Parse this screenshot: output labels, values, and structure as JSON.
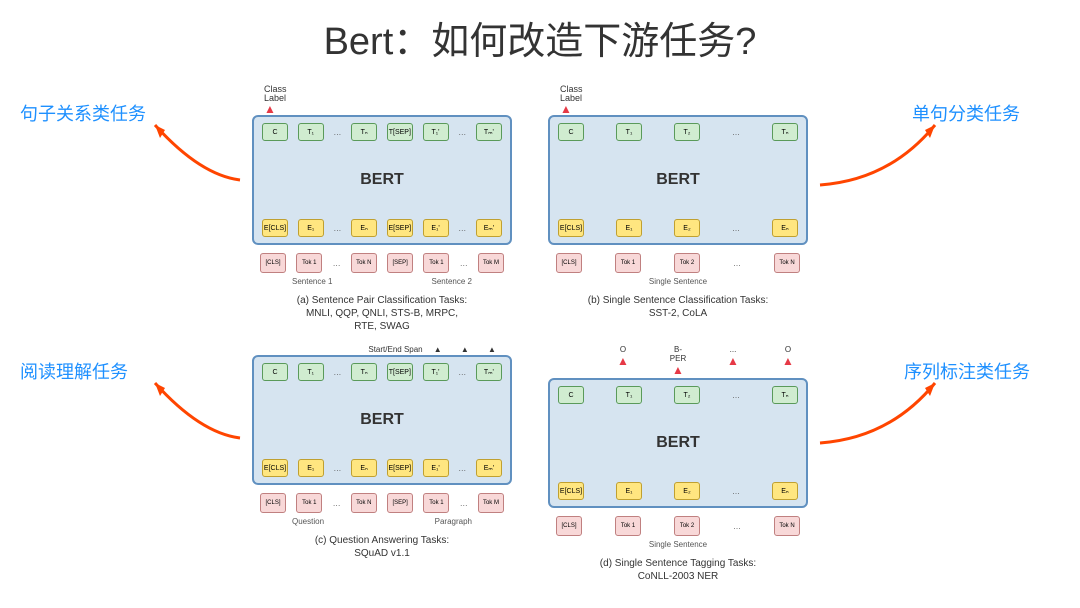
{
  "title": "Bert：如何改造下游任务?",
  "labels": {
    "topLeft": "句子关系类任务",
    "topRight": "单句分类任务",
    "bottomLeft": "阅读理解任务",
    "bottomRight": "序列标注类任务"
  },
  "colors": {
    "bertBox": "#d6e4f0",
    "bertBorder": "#6090c0",
    "topToken": "#d0ecd0",
    "bottomToken": "#ffe680",
    "inputToken": "#f8d8d8",
    "arrow": "#ff4500",
    "labelText": "#1e90ff"
  },
  "bertLabel": "BERT",
  "classLabel": "Class\nLabel",
  "startEnd": "Start/End Span",
  "tagLabels": [
    "O",
    "B-PER",
    "...",
    "O"
  ],
  "panels": {
    "a": {
      "top": [
        "C",
        "T₁",
        "...",
        "Tₙ",
        "T[SEP]",
        "T₁'",
        "...",
        "Tₘ'"
      ],
      "bot": [
        "E[CLS]",
        "E₁",
        "...",
        "Eₙ",
        "E[SEP]",
        "E₁'",
        "...",
        "Eₘ'"
      ],
      "input": [
        "[CLS]",
        "Tok 1",
        "...",
        "Tok N",
        "[SEP]",
        "Tok 1",
        "...",
        "Tok M"
      ],
      "bracket1": "Sentence 1",
      "bracket2": "Sentence 2",
      "caption": "(a) Sentence Pair Classification Tasks:\nMNLI, QQP, QNLI, STS-B, MRPC,\nRTE, SWAG"
    },
    "b": {
      "top": [
        "C",
        "T₁",
        "T₂",
        "...",
        "Tₙ"
      ],
      "bot": [
        "E[CLS]",
        "E₁",
        "E₂",
        "...",
        "Eₙ"
      ],
      "input": [
        "[CLS]",
        "Tok 1",
        "Tok 2",
        "...",
        "Tok N"
      ],
      "bracket": "Single Sentence",
      "caption": "(b) Single Sentence Classification Tasks:\nSST-2, CoLA"
    },
    "c": {
      "top": [
        "C",
        "T₁",
        "...",
        "Tₙ",
        "T[SEP]",
        "T₁'",
        "...",
        "Tₘ'"
      ],
      "bot": [
        "E[CLS]",
        "E₁",
        "...",
        "Eₙ",
        "E[SEP]",
        "E₁'",
        "...",
        "Eₘ'"
      ],
      "input": [
        "[CLS]",
        "Tok 1",
        "...",
        "Tok N",
        "[SEP]",
        "Tok 1",
        "...",
        "Tok M"
      ],
      "bracket1": "Question",
      "bracket2": "Paragraph",
      "caption": "(c) Question Answering Tasks:\nSQuAD v1.1"
    },
    "d": {
      "top": [
        "C",
        "T₁",
        "T₂",
        "...",
        "Tₙ"
      ],
      "bot": [
        "E[CLS]",
        "E₁",
        "E₂",
        "...",
        "Eₙ"
      ],
      "input": [
        "[CLS]",
        "Tok 1",
        "Tok 2",
        "...",
        "Tok N"
      ],
      "bracket": "Single Sentence",
      "caption": "(d) Single Sentence Tagging Tasks:\nCoNLL-2003 NER"
    }
  }
}
